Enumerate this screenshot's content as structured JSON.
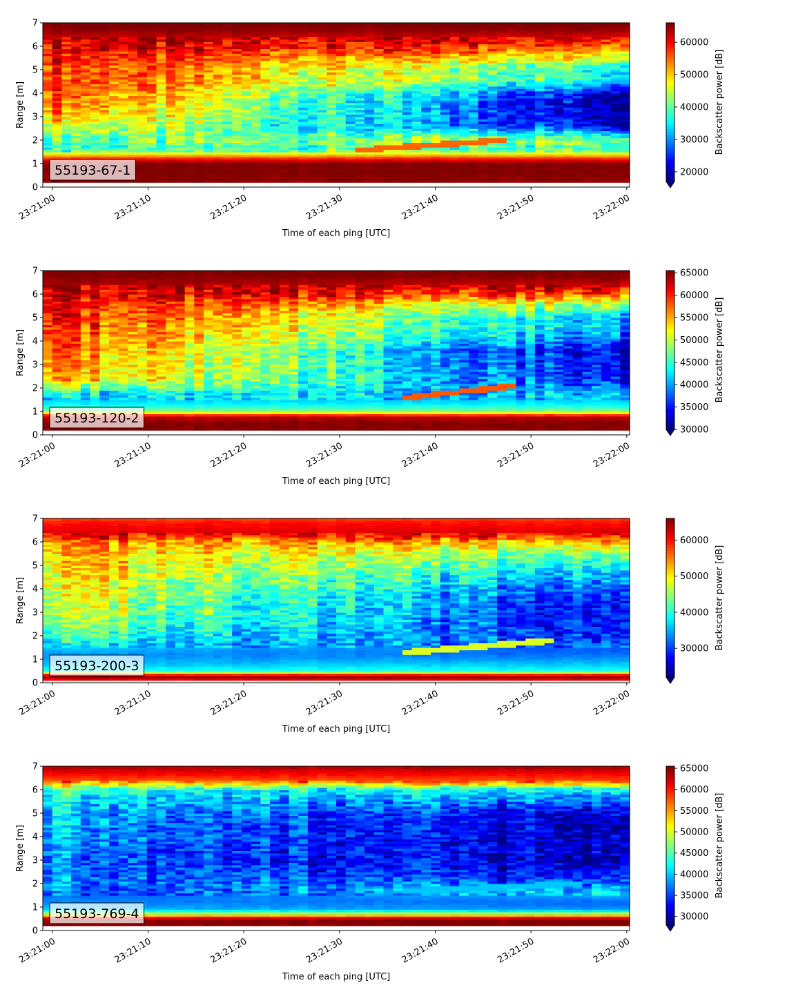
{
  "chart_data": [
    {
      "type": "heatmap",
      "label": "55193-67-1",
      "xlabel": "Time of each ping [UTC]",
      "ylabel": "Range [m]",
      "x_ticks": [
        "23:21:00",
        "23:21:10",
        "23:21:20",
        "23:21:30",
        "23:21:40",
        "23:21:50",
        "23:22:00"
      ],
      "xlim": [
        "23:20:59",
        "23:22:00.3"
      ],
      "y_ticks": [
        0,
        1,
        2,
        3,
        4,
        5,
        6,
        7
      ],
      "ylim": [
        0,
        7
      ],
      "colorbar": {
        "label": "Backscatter power [dB]",
        "range": [
          17000,
          66000
        ],
        "ticks": [
          20000,
          30000,
          40000,
          50000,
          60000
        ],
        "extend": "min",
        "colormap": "jet"
      },
      "profile": {
        "range_m": [
          0.2,
          0.5,
          1.0,
          1.2,
          1.6,
          2.0,
          2.6,
          3.0,
          3.6,
          4.0,
          4.6,
          5.0,
          5.6,
          6.0,
          6.4,
          6.8,
          7.0
        ],
        "power_start": [
          65000,
          66000,
          66000,
          60000,
          38000,
          40000,
          48000,
          52000,
          56000,
          57000,
          58000,
          58000,
          60000,
          62000,
          63000,
          66000,
          66000
        ],
        "power_end": [
          65000,
          66000,
          66000,
          60000,
          38000,
          44000,
          22000,
          20000,
          18000,
          22000,
          36000,
          36000,
          48000,
          56000,
          62000,
          66000,
          66000
        ]
      },
      "trace": {
        "time": [
          "23:21:32",
          "23:21:47"
        ],
        "range_m": [
          1.6,
          2.0
        ],
        "power": 55000
      }
    },
    {
      "type": "heatmap",
      "label": "55193-120-2",
      "xlabel": "Time of each ping [UTC]",
      "ylabel": "Range [m]",
      "x_ticks": [
        "23:21:00",
        "23:21:10",
        "23:21:20",
        "23:21:30",
        "23:21:40",
        "23:21:50",
        "23:22:00"
      ],
      "xlim": [
        "23:20:59",
        "23:22:00.3"
      ],
      "y_ticks": [
        0,
        1,
        2,
        3,
        4,
        5,
        6,
        7
      ],
      "ylim": [
        0,
        7
      ],
      "colorbar": {
        "label": "Backscatter power [dB]",
        "range": [
          30000,
          65500
        ],
        "ticks": [
          30000,
          35000,
          40000,
          45000,
          50000,
          55000,
          60000,
          65000
        ],
        "extend": "min",
        "colormap": "jet"
      },
      "profile": {
        "range_m": [
          0.2,
          0.5,
          0.8,
          1.0,
          1.4,
          1.8,
          2.4,
          3.0,
          3.6,
          4.0,
          4.6,
          5.0,
          5.6,
          6.0,
          6.4,
          6.8,
          7.0
        ],
        "power_start": [
          65000,
          65500,
          63000,
          48000,
          42000,
          44000,
          56000,
          57000,
          58000,
          59000,
          60000,
          61000,
          62000,
          63000,
          64000,
          65500,
          65500
        ],
        "power_end": [
          65000,
          65500,
          63000,
          48000,
          42000,
          40000,
          34000,
          33000,
          32000,
          36000,
          40000,
          40000,
          48000,
          58000,
          63000,
          65500,
          65500
        ]
      },
      "trace": {
        "time": [
          "23:21:37",
          "23:21:48"
        ],
        "range_m": [
          1.6,
          2.1
        ],
        "power": 58000
      }
    },
    {
      "type": "heatmap",
      "label": "55193-200-3",
      "xlabel": "Time of each ping [UTC]",
      "ylabel": "Range [m]",
      "x_ticks": [
        "23:21:00",
        "23:21:10",
        "23:21:20",
        "23:21:30",
        "23:21:40",
        "23:21:50",
        "23:22:00"
      ],
      "xlim": [
        "23:20:59",
        "23:22:00.3"
      ],
      "y_ticks": [
        0,
        1,
        2,
        3,
        4,
        5,
        6,
        7
      ],
      "ylim": [
        0,
        7
      ],
      "colorbar": {
        "label": "Backscatter power [dB]",
        "range": [
          22000,
          66000
        ],
        "ticks": [
          30000,
          40000,
          50000,
          60000
        ],
        "extend": "min",
        "colormap": "jet"
      },
      "profile": {
        "range_m": [
          0.1,
          0.3,
          0.5,
          0.8,
          1.2,
          1.6,
          2.0,
          2.6,
          3.0,
          3.6,
          4.0,
          4.6,
          5.0,
          5.6,
          6.0,
          6.4,
          6.8,
          7.0
        ],
        "power_start": [
          60000,
          66000,
          40000,
          36000,
          34000,
          38000,
          42000,
          46000,
          48000,
          49000,
          50000,
          51000,
          52000,
          53000,
          55000,
          62000,
          60000,
          58000
        ],
        "power_end": [
          60000,
          66000,
          40000,
          36000,
          32000,
          30000,
          28000,
          27000,
          26000,
          27000,
          30000,
          34000,
          38000,
          44000,
          52000,
          62000,
          60000,
          58000
        ]
      },
      "trace": {
        "time": [
          "23:21:37",
          "23:21:52"
        ],
        "range_m": [
          1.3,
          1.8
        ],
        "power": 48000
      }
    },
    {
      "type": "heatmap",
      "label": "55193-769-4",
      "xlabel": "Time of each ping [UTC]",
      "ylabel": "Range [m]",
      "x_ticks": [
        "23:21:00",
        "23:21:10",
        "23:21:20",
        "23:21:30",
        "23:21:40",
        "23:21:50",
        "23:22:00"
      ],
      "xlim": [
        "23:20:59",
        "23:22:00.3"
      ],
      "y_ticks": [
        0,
        1,
        2,
        3,
        4,
        5,
        6,
        7
      ],
      "ylim": [
        0,
        7
      ],
      "colorbar": {
        "label": "Backscatter power [dB]",
        "range": [
          28000,
          65500
        ],
        "ticks": [
          30000,
          35000,
          40000,
          45000,
          50000,
          55000,
          60000,
          65000
        ],
        "extend": "min",
        "colormap": "jet"
      },
      "profile": {
        "range_m": [
          0.2,
          0.5,
          0.7,
          0.9,
          1.2,
          1.6,
          2.0,
          2.6,
          3.0,
          3.6,
          4.0,
          4.6,
          5.0,
          5.6,
          6.0,
          6.4,
          6.8,
          7.0
        ],
        "power_start": [
          65000,
          65500,
          50000,
          40000,
          38000,
          36000,
          38000,
          38000,
          38000,
          38000,
          39000,
          40000,
          40000,
          42000,
          44000,
          58000,
          62000,
          64000
        ],
        "power_end": [
          65000,
          65500,
          50000,
          38000,
          36000,
          40000,
          36000,
          30000,
          29000,
          29000,
          29000,
          29000,
          30000,
          36000,
          40000,
          58000,
          62000,
          64000
        ]
      },
      "trace": {
        "time": [
          "23:21:37",
          "23:21:55"
        ],
        "range_m": [
          1.7,
          2.0
        ],
        "power": 40000
      }
    }
  ]
}
